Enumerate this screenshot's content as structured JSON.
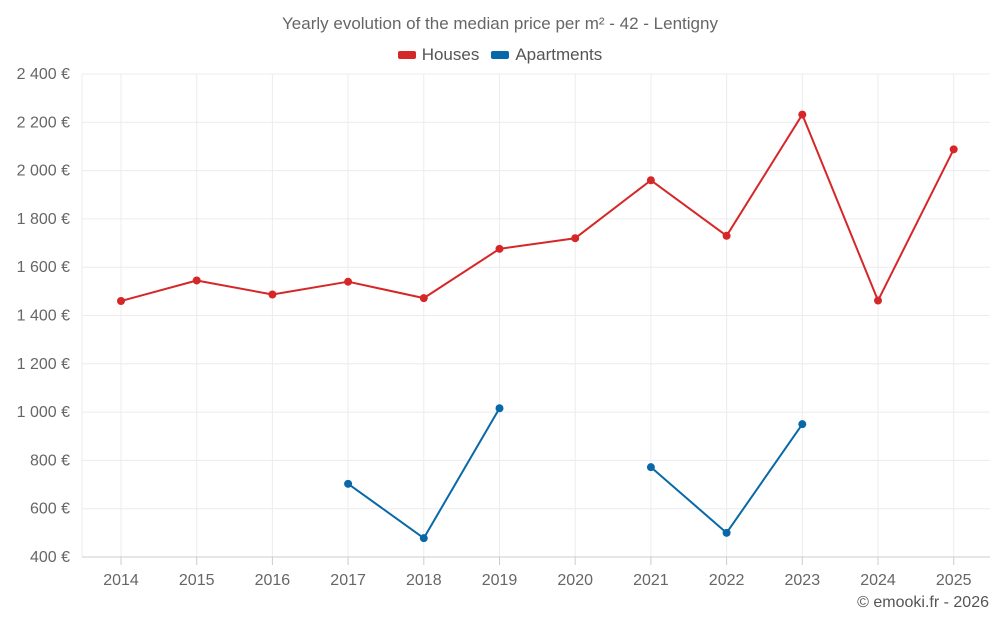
{
  "chart_data": {
    "type": "line",
    "title": "Yearly evolution of the median price per m² - 42 - Lentigny",
    "categories": [
      "2014",
      "2015",
      "2016",
      "2017",
      "2018",
      "2019",
      "2020",
      "2021",
      "2022",
      "2023",
      "2024",
      "2025"
    ],
    "ylim": [
      400,
      2400
    ],
    "yticks": [
      400,
      600,
      800,
      1000,
      1200,
      1400,
      1600,
      1800,
      2000,
      2200,
      2400
    ],
    "ytick_labels": [
      "400 €",
      "600 €",
      "800 €",
      "1 000 €",
      "1 200 €",
      "1 400 €",
      "1 600 €",
      "1 800 €",
      "2 000 €",
      "2 200 €",
      "2 400 €"
    ],
    "grid": true,
    "legend_position": "top-center",
    "series": [
      {
        "name": "Houses",
        "color": "#d62728",
        "values": [
          1460,
          1545,
          1487,
          1540,
          1472,
          1676,
          1720,
          1960,
          1730,
          2232,
          1462,
          2088
        ]
      },
      {
        "name": "Apartments",
        "color": "#0868a8",
        "values": [
          null,
          null,
          null,
          703,
          478,
          1016,
          null,
          772,
          500,
          950,
          null,
          null
        ]
      }
    ]
  },
  "credit": "© emooki.fr - 2026"
}
